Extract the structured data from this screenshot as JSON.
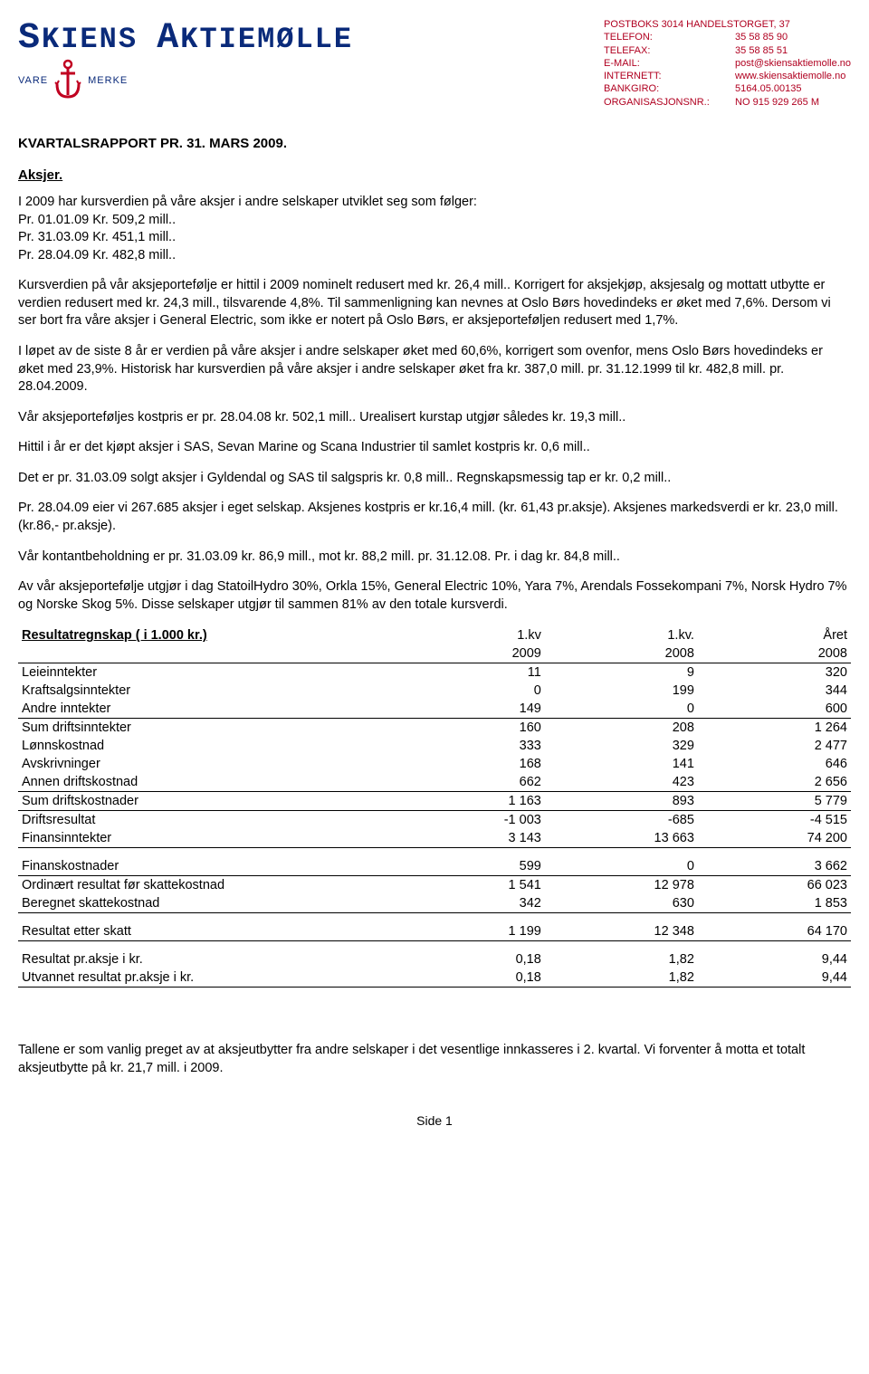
{
  "header": {
    "logo_main_1": "S",
    "logo_main_2": "KIENS",
    "logo_main_3": "A",
    "logo_main_4": "KTIEMØLLE",
    "logo_sub_left": "VARE",
    "logo_sub_right": "MERKE",
    "contact": [
      {
        "label": "",
        "value": "POSTBOKS 3014 HANDELSTORGET, 37"
      },
      {
        "label": "TELEFON:",
        "value": "35 58 85 90"
      },
      {
        "label": "TELEFAX:",
        "value": "35 58 85 51"
      },
      {
        "label": "E-MAIL:",
        "value": "post@skiensaktiemolle.no"
      },
      {
        "label": "INTERNETT:",
        "value": "www.skiensaktiemolle.no"
      },
      {
        "label": "BANKGIRO:",
        "value": "5164.05.00135"
      },
      {
        "label": "ORGANISASJONSNR.:",
        "value": "NO 915 929 265 M"
      }
    ]
  },
  "title": "KVARTALSRAPPORT PR. 31. MARS 2009.",
  "section_aksjer_title": "Aksjer.",
  "p1": "I 2009 har kursverdien på våre aksjer i andre selskaper utviklet seg som følger:",
  "p1_lines": [
    "Pr. 01.01.09 Kr. 509,2 mill..",
    "Pr. 31.03.09 Kr. 451,1 mill..",
    "Pr. 28.04.09 Kr. 482,8 mill.."
  ],
  "p2": "Kursverdien på vår aksjeportefølje er hittil i 2009 nominelt redusert med kr. 26,4 mill.. Korrigert for aksjekjøp, aksjesalg og mottatt utbytte er verdien redusert med kr. 24,3 mill., tilsvarende 4,8%. Til sammenligning kan nevnes at Oslo Børs hovedindeks er øket med 7,6%. Dersom vi ser bort fra våre aksjer i General Electric, som ikke er notert på Oslo Børs, er aksjeporteføljen redusert med 1,7%.",
  "p3": "I løpet av de siste 8 år er verdien på våre aksjer i andre selskaper øket med 60,6%, korrigert som ovenfor, mens Oslo Børs hovedindeks er øket med 23,9%.  Historisk har kursverdien på våre aksjer i andre selskaper øket fra kr. 387,0 mill. pr. 31.12.1999 til kr. 482,8 mill. pr. 28.04.2009.",
  "p4": "Vår aksjeporteføljes kostpris er pr. 28.04.08 kr. 502,1 mill..  Urealisert kurstap utgjør således kr. 19,3 mill..",
  "p5": "Hittil i år er det kjøpt aksjer i SAS, Sevan Marine og Scana Industrier til samlet kostpris kr. 0,6 mill..",
  "p6": "Det er pr. 31.03.09 solgt aksjer i Gyldendal og SAS til salgspris kr. 0,8 mill..  Regnskapsmessig tap er kr. 0,2 mill..",
  "p7": "Pr. 28.04.09 eier vi 267.685 aksjer i eget selskap.  Aksjenes kostpris er kr.16,4 mill. (kr. 61,43 pr.aksje). Aksjenes markedsverdi er kr. 23,0 mill. (kr.86,- pr.aksje).",
  "p8": "Vår kontantbeholdning er pr. 31.03.09 kr. 86,9 mill., mot kr. 88,2 mill. pr. 31.12.08.  Pr. i dag kr. 84,8 mill..",
  "p9": "Av vår aksjeportefølje utgjør i dag StatoilHydro 30%, Orkla 15%, General Electric 10%, Yara 7%, Arendals Fossekompani 7%, Norsk Hydro 7% og Norske Skog 5%.  Disse selskaper utgjør til sammen 81% av den totale kursverdi.",
  "fin_header_label": "Resultatregnskap ( i 1.000 kr.)",
  "fin_cols": [
    "1.kv",
    "1.kv.",
    "Året"
  ],
  "fin_cols2": [
    "2009",
    "2008",
    "2008"
  ],
  "fin_rows": [
    {
      "label": "Leieinntekter",
      "vals": [
        "11",
        "9",
        "320"
      ]
    },
    {
      "label": "Kraftsalgsinntekter",
      "vals": [
        "0",
        "199",
        "344"
      ]
    },
    {
      "label": "Andre inntekter",
      "vals": [
        "149",
        "0",
        "600"
      ],
      "underline": true
    },
    {
      "label": "Sum driftsinntekter",
      "vals": [
        "160",
        "208",
        "1 264"
      ]
    },
    {
      "label": "Lønnskostnad",
      "vals": [
        "333",
        "329",
        "2 477"
      ]
    },
    {
      "label": "Avskrivninger",
      "vals": [
        "168",
        "141",
        "646"
      ]
    },
    {
      "label": "Annen driftskostnad",
      "vals": [
        "662",
        "423",
        "2 656"
      ],
      "underline": true
    },
    {
      "label": "Sum driftskostnader",
      "vals": [
        "1 163",
        "893",
        "5 779"
      ],
      "underline": true
    },
    {
      "label": "Driftsresultat",
      "vals": [
        "-1 003",
        "-685",
        "-4 515"
      ]
    },
    {
      "label": "Finansinntekter",
      "vals": [
        "3 143",
        "13 663",
        "74 200"
      ],
      "underline": true
    },
    {
      "label": "Finanskostnader",
      "vals": [
        "599",
        "0",
        "3 662"
      ],
      "underline": true
    },
    {
      "label": "Ordinært resultat før skattekostnad",
      "vals": [
        "1 541",
        "12 978",
        "66 023"
      ]
    },
    {
      "label": "Beregnet skattekostnad",
      "vals": [
        "342",
        "630",
        "1 853"
      ],
      "underline": true
    },
    {
      "label": "Resultat etter skatt",
      "vals": [
        "1 199",
        "12 348",
        "64 170"
      ],
      "underline": true
    },
    {
      "label": "Resultat pr.aksje i kr.",
      "vals": [
        "0,18",
        "1,82",
        "9,44"
      ]
    },
    {
      "label": "Utvannet resultat pr.aksje i kr.",
      "vals": [
        "0,18",
        "1,82",
        "9,44"
      ],
      "underline": true
    }
  ],
  "footer_p": "Tallene er som vanlig preget av at aksjeutbytter fra andre selskaper i det vesentlige innkasseres i 2. kvartal. Vi forventer å motta et totalt aksjeutbytte på kr. 21,7 mill. i 2009.",
  "page_footer": "Side 1"
}
